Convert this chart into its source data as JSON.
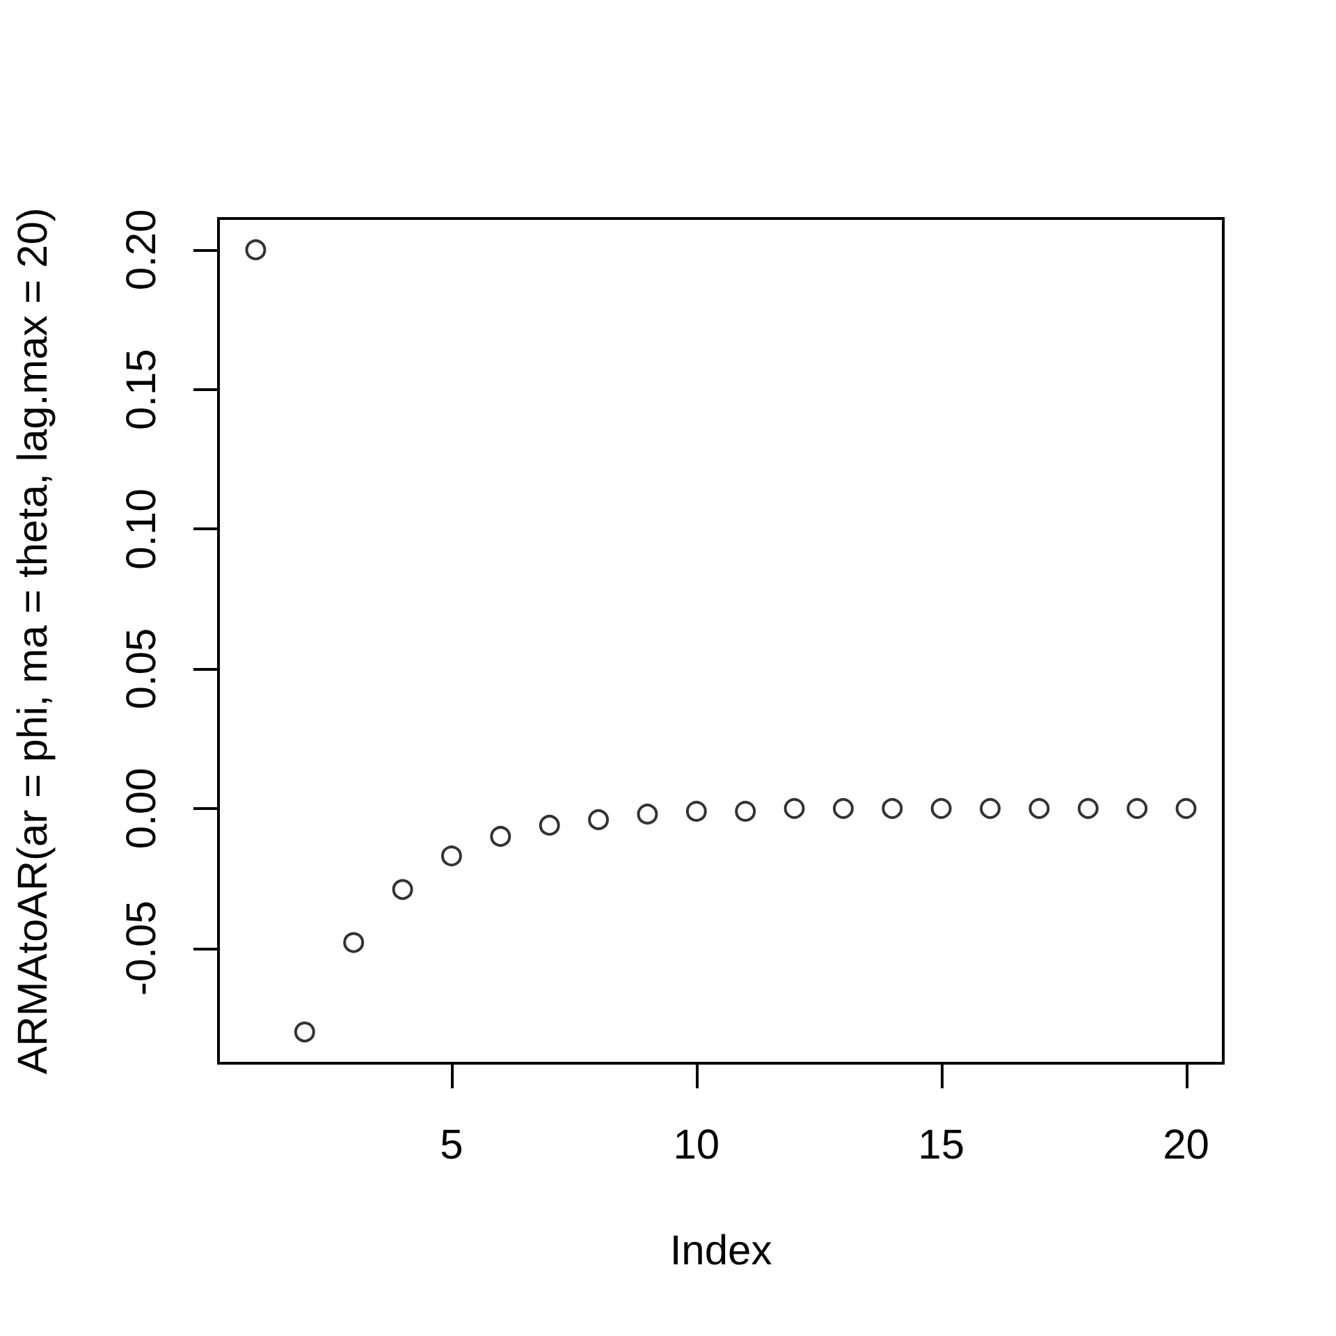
{
  "chart_data": {
    "type": "scatter",
    "xlabel": "Index",
    "ylabel": "ARMAtoAR(ar = phi, ma = theta, lag.max = 20)",
    "x": [
      1,
      2,
      3,
      4,
      5,
      6,
      7,
      8,
      9,
      10,
      11,
      12,
      13,
      14,
      15,
      16,
      17,
      18,
      19,
      20
    ],
    "values": [
      0.2,
      -0.08,
      -0.048,
      -0.029,
      -0.017,
      -0.01,
      -0.006,
      -0.004,
      -0.002,
      -0.001,
      -0.001,
      0,
      0,
      0,
      0,
      0,
      0,
      0,
      0,
      0
    ],
    "color": "#000000",
    "marker": "circle",
    "xlim": [
      0.24,
      20.76
    ],
    "ylim": [
      -0.0912,
      0.2112
    ],
    "xticks": [
      5,
      10,
      15,
      20
    ],
    "yticks": [
      {
        "value": -0.05,
        "label": "-0.05"
      },
      {
        "value": 0,
        "label": "0.00"
      },
      {
        "value": 0.05,
        "label": "0.05"
      },
      {
        "value": 0.1,
        "label": "0.10"
      },
      {
        "value": 0.15,
        "label": "0.15"
      },
      {
        "value": 0.2,
        "label": "0.20"
      }
    ]
  }
}
